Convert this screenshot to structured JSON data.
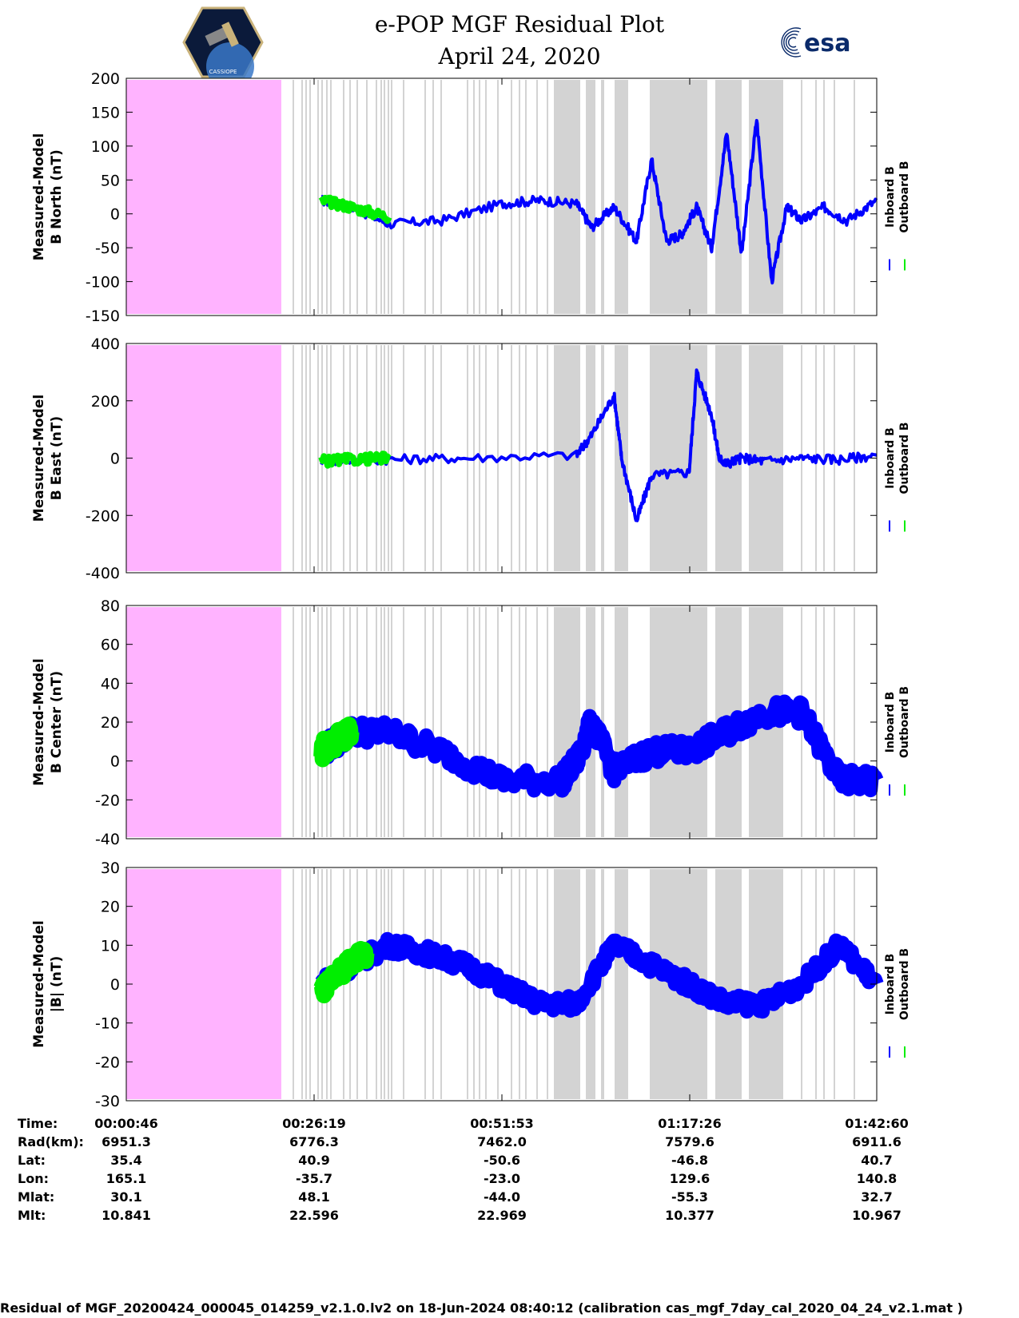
{
  "header": {
    "title": "e-POP MGF Residual Plot",
    "date": "April 24, 2020",
    "left_logo_text": "CASSIOPE",
    "right_logo_text": "esa"
  },
  "colors": {
    "inboard": "#0000ff",
    "outboard": "#00ee00",
    "no_data": "#ffb3ff",
    "gap": "#d3d3d3"
  },
  "chart_data": [
    {
      "type": "line",
      "ylabel": [
        "Measured-Model",
        "B North (nT)"
      ],
      "ylim": [
        -150,
        200
      ],
      "yticks": [
        200,
        150,
        100,
        50,
        0,
        -50,
        -100,
        -150
      ],
      "series": [
        {
          "name": "Inboard B",
          "x": [
            0.26,
            0.3,
            0.35,
            0.42,
            0.5,
            0.55,
            0.6,
            0.62,
            0.65,
            0.68,
            0.7,
            0.72,
            0.74,
            0.76,
            0.78,
            0.8,
            0.82,
            0.84,
            0.86,
            0.88,
            0.9,
            0.93,
            0.96,
            1.0
          ],
          "values": [
            20,
            10,
            -15,
            -10,
            15,
            20,
            15,
            -20,
            10,
            -40,
            80,
            -40,
            -30,
            10,
            -50,
            120,
            -60,
            140,
            -100,
            10,
            -10,
            10,
            -10,
            20
          ]
        },
        {
          "name": "Outboard B",
          "x": [
            0.26,
            0.3,
            0.35
          ],
          "values": [
            20,
            10,
            -5
          ]
        }
      ]
    },
    {
      "type": "line",
      "ylabel": [
        "Measured-Model",
        "B East (nT)"
      ],
      "ylim": [
        -400,
        400
      ],
      "yticks": [
        400,
        200,
        0,
        -200,
        -400
      ],
      "series": [
        {
          "name": "Inboard B",
          "x": [
            0.26,
            0.35,
            0.45,
            0.6,
            0.62,
            0.65,
            0.66,
            0.68,
            0.7,
            0.75,
            0.76,
            0.78,
            0.79,
            0.8,
            0.82,
            0.85,
            0.9,
            0.95,
            1.0
          ],
          "values": [
            -10,
            -5,
            0,
            10,
            80,
            220,
            0,
            -220,
            -60,
            -50,
            300,
            150,
            0,
            -20,
            0,
            -10,
            0,
            -5,
            10
          ]
        },
        {
          "name": "Outboard B",
          "x": [
            0.26,
            0.3,
            0.35
          ],
          "values": [
            -10,
            -5,
            0
          ]
        }
      ]
    },
    {
      "type": "line",
      "ylabel": [
        "Measured-Model",
        "B Center (nT)"
      ],
      "ylim": [
        -40,
        80
      ],
      "yticks": [
        80,
        60,
        40,
        20,
        0,
        -20,
        -40
      ],
      "series": [
        {
          "name": "Inboard B",
          "x": [
            0.26,
            0.3,
            0.35,
            0.42,
            0.5,
            0.58,
            0.6,
            0.62,
            0.65,
            0.7,
            0.75,
            0.8,
            0.85,
            0.9,
            0.95,
            1.0
          ],
          "values": [
            5,
            15,
            15,
            5,
            -10,
            -10,
            0,
            20,
            -5,
            5,
            5,
            15,
            25,
            25,
            -10,
            -10
          ]
        },
        {
          "name": "Outboard B",
          "x": [
            0.26,
            0.28,
            0.3
          ],
          "values": [
            5,
            10,
            15
          ]
        }
      ]
    },
    {
      "type": "line",
      "ylabel": [
        "Measured-Model",
        "|B| (nT)"
      ],
      "ylim": [
        -30,
        30
      ],
      "yticks": [
        30,
        20,
        10,
        0,
        -10,
        -20,
        -30
      ],
      "series": [
        {
          "name": "Inboard B",
          "x": [
            0.26,
            0.3,
            0.35,
            0.4,
            0.45,
            0.5,
            0.55,
            0.6,
            0.65,
            0.7,
            0.75,
            0.8,
            0.85,
            0.9,
            0.95,
            1.0
          ],
          "values": [
            0,
            5,
            10,
            8,
            5,
            0,
            -5,
            -5,
            10,
            5,
            0,
            -5,
            -5,
            0,
            10,
            0
          ]
        },
        {
          "name": "Outboard B",
          "x": [
            0.26,
            0.28,
            0.3,
            0.32
          ],
          "values": [
            -2,
            2,
            6,
            8
          ]
        }
      ]
    }
  ],
  "legend": {
    "inboard": "Inboard B",
    "outboard": "Outboard B"
  },
  "footer": {
    "labels": [
      "Time:",
      "Rad(km):",
      "Lat:",
      "Lon:",
      "Mlat:",
      "Mlt:"
    ],
    "columns": [
      [
        "00:00:46",
        "6951.3",
        "35.4",
        "165.1",
        "30.1",
        "10.841"
      ],
      [
        "00:26:19",
        "6776.3",
        "40.9",
        "-35.7",
        "48.1",
        "22.596"
      ],
      [
        "00:51:53",
        "7462.0",
        "-50.6",
        "-23.0",
        "-44.0",
        "22.969"
      ],
      [
        "01:17:26",
        "7579.6",
        "-46.8",
        "129.6",
        "-55.3",
        "10.377"
      ],
      [
        "01:42:60",
        "6911.6",
        "40.7",
        "140.8",
        "32.7",
        "10.967"
      ]
    ]
  },
  "caption": "Residual of MGF_20200424_000045_014259_v2.1.0.lv2 on 18-Jun-2024 08:40:12 (calibration cas_mgf_7day_cal_2020_04_24_v2.1.mat )"
}
